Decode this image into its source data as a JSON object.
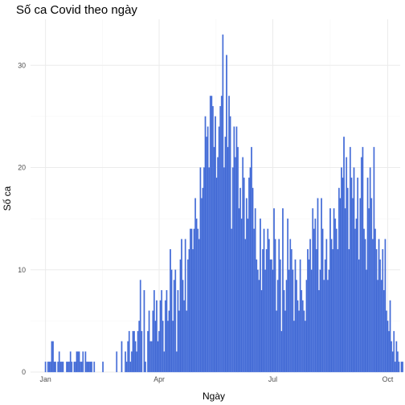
{
  "chart_data": {
    "type": "bar",
    "title": "Số ca Covid theo ngày",
    "xlabel": "Ngày",
    "ylabel": "Số ca",
    "bar_color": "#4169D4",
    "bar_stroke": "#5B7FE0",
    "grid": true,
    "y_ticks": [
      0,
      10,
      20,
      30
    ],
    "x_ticks": [
      {
        "label": "Jan",
        "date": "2020-01-01"
      },
      {
        "label": "Apr",
        "date": "2020-04-01"
      },
      {
        "label": "Jul",
        "date": "2020-07-01"
      },
      {
        "label": "Oct",
        "date": "2020-10-01"
      }
    ],
    "x_range": [
      "2019-12-20",
      "2020-10-11"
    ],
    "ylim": [
      0,
      34.5
    ],
    "series": [
      {
        "start_date": "2020-01-01",
        "values": [
          1,
          0,
          1,
          1,
          1,
          3,
          3,
          1,
          1,
          0,
          1,
          2,
          1,
          1,
          1,
          0,
          0,
          1,
          1,
          1,
          2,
          1,
          0,
          1,
          1,
          2,
          2,
          2,
          1,
          1,
          2,
          0,
          2,
          1,
          1,
          1,
          1,
          1,
          0,
          1,
          0,
          0,
          0,
          0,
          0,
          0,
          1,
          0,
          0,
          0,
          0,
          0,
          0,
          0,
          0,
          0,
          0,
          2,
          0,
          0,
          0,
          3,
          0,
          0,
          2,
          1,
          3,
          4,
          1,
          2,
          4,
          4,
          3,
          2,
          4,
          5,
          9,
          4,
          0,
          8,
          1,
          0,
          4,
          6,
          3,
          3,
          6,
          8,
          5,
          7,
          3,
          4,
          7,
          8,
          5,
          2,
          7,
          8,
          5,
          6,
          12,
          10,
          5,
          9,
          10,
          2,
          8,
          6,
          11,
          13,
          9,
          7,
          13,
          6,
          11,
          12,
          14,
          14,
          12,
          14,
          17,
          15,
          14,
          13,
          20,
          17,
          18,
          20,
          25,
          23,
          24,
          20,
          27,
          27,
          26,
          22,
          25,
          19,
          21,
          24,
          26,
          27,
          33,
          20,
          23,
          31,
          22,
          27,
          25,
          14,
          20,
          24,
          21,
          24,
          22,
          16,
          18,
          15,
          21,
          19,
          13,
          17,
          15,
          19,
          20,
          22,
          18,
          14,
          16,
          11,
          10,
          9,
          15,
          8,
          12,
          14,
          10,
          12,
          14,
          13,
          11,
          11,
          10,
          16,
          13,
          6,
          9,
          13,
          11,
          4,
          16,
          8,
          6,
          9,
          15,
          10,
          13,
          12,
          10,
          5,
          11,
          9,
          7,
          6,
          11,
          8,
          7,
          6,
          5,
          9,
          12,
          11,
          13,
          10,
          16,
          14,
          15,
          12,
          17,
          8,
          10,
          17,
          14,
          9,
          11,
          13,
          9,
          10,
          16,
          13,
          12,
          16,
          15,
          14,
          12,
          18,
          17,
          20,
          19,
          23,
          16,
          21,
          18,
          12,
          22,
          19,
          17,
          20,
          14,
          15,
          19,
          11,
          17,
          21,
          22,
          14,
          13,
          10,
          19,
          16,
          20,
          17,
          13,
          22,
          14,
          12,
          9,
          13,
          11,
          9,
          12,
          8,
          13,
          6,
          5,
          4,
          7,
          3,
          2,
          4,
          1,
          3,
          2,
          1,
          0,
          1,
          1,
          0,
          0,
          0,
          0,
          0,
          0,
          0,
          0,
          2
        ]
      }
    ]
  }
}
